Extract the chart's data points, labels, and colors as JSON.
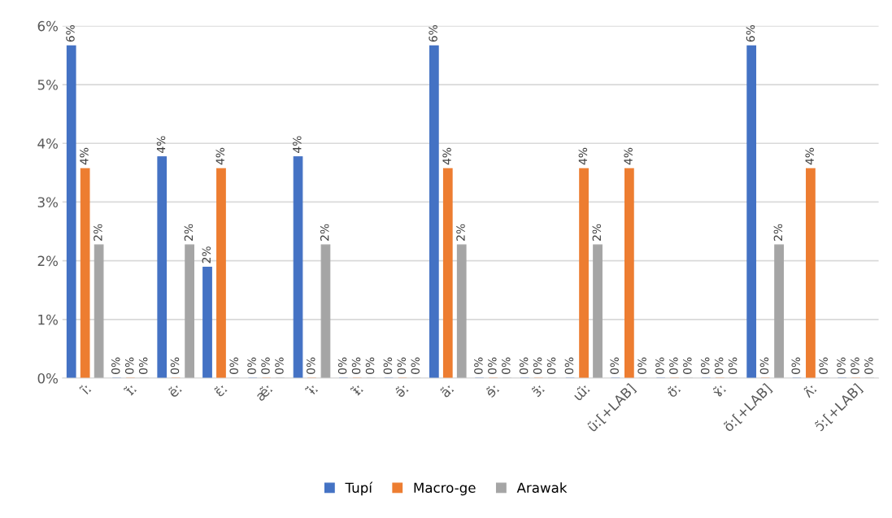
{
  "chart_data": {
    "type": "bar",
    "categories": [
      "ĩː",
      "ɪ̃ː",
      "ẽː",
      "ɛ̃ː",
      "æ̃ː",
      "ɨ̃ː",
      "ᵻ̃ː",
      "ə̃ː",
      "ãː",
      "ɘ̃ː",
      "ɜ̃ː",
      "ɯ̃ː",
      "ũː[+LAB]",
      "ʊ̃ː",
      "ɤ̃ː",
      "õː[+LAB]",
      "ʌ̃ː",
      "ɔ̃ː[+LAB]"
    ],
    "series": [
      {
        "name": "Tupí",
        "color": "#4472c4",
        "values": [
          5.66,
          0,
          3.77,
          1.89,
          0,
          3.77,
          0,
          0,
          5.66,
          0,
          0,
          0,
          0,
          0,
          0,
          5.66,
          0,
          0
        ],
        "value_labels": [
          "6%",
          "0%",
          "4%",
          "2%",
          "0%",
          "4%",
          "0%",
          "0%",
          "6%",
          "0%",
          "0%",
          "0%",
          "0%",
          "0%",
          "0%",
          "6%",
          "0%",
          "0%"
        ]
      },
      {
        "name": "Macro-ge",
        "color": "#ed7d31",
        "values": [
          3.57,
          0,
          0,
          3.57,
          0,
          0,
          0,
          0,
          3.57,
          0,
          0,
          3.57,
          3.57,
          0,
          0,
          0,
          3.57,
          0
        ],
        "value_labels": [
          "4%",
          "0%",
          "0%",
          "4%",
          "0%",
          "0%",
          "0%",
          "0%",
          "4%",
          "0%",
          "0%",
          "4%",
          "4%",
          "0%",
          "0%",
          "0%",
          "4%",
          "0%"
        ]
      },
      {
        "name": "Arawak",
        "color": "#a5a5a5",
        "values": [
          2.27,
          0,
          2.27,
          0,
          0,
          2.27,
          0,
          0,
          2.27,
          0,
          0,
          2.27,
          0,
          0,
          0,
          2.27,
          0,
          0
        ],
        "value_labels": [
          "2%",
          "0%",
          "2%",
          "0%",
          "0%",
          "2%",
          "0%",
          "0%",
          "2%",
          "0%",
          "0%",
          "2%",
          "0%",
          "0%",
          "0%",
          "2%",
          "0%",
          "0%"
        ]
      }
    ],
    "ylim": [
      0,
      6
    ],
    "yticks": [
      {
        "value": 0,
        "label": "0%"
      },
      {
        "value": 1,
        "label": "1%"
      },
      {
        "value": 2,
        "label": "2%"
      },
      {
        "value": 3,
        "label": "3%"
      },
      {
        "value": 4,
        "label": "4%"
      },
      {
        "value": 5,
        "label": "5%"
      },
      {
        "value": 6,
        "label": "6%"
      }
    ],
    "grid": "y",
    "legend": "bottom"
  }
}
